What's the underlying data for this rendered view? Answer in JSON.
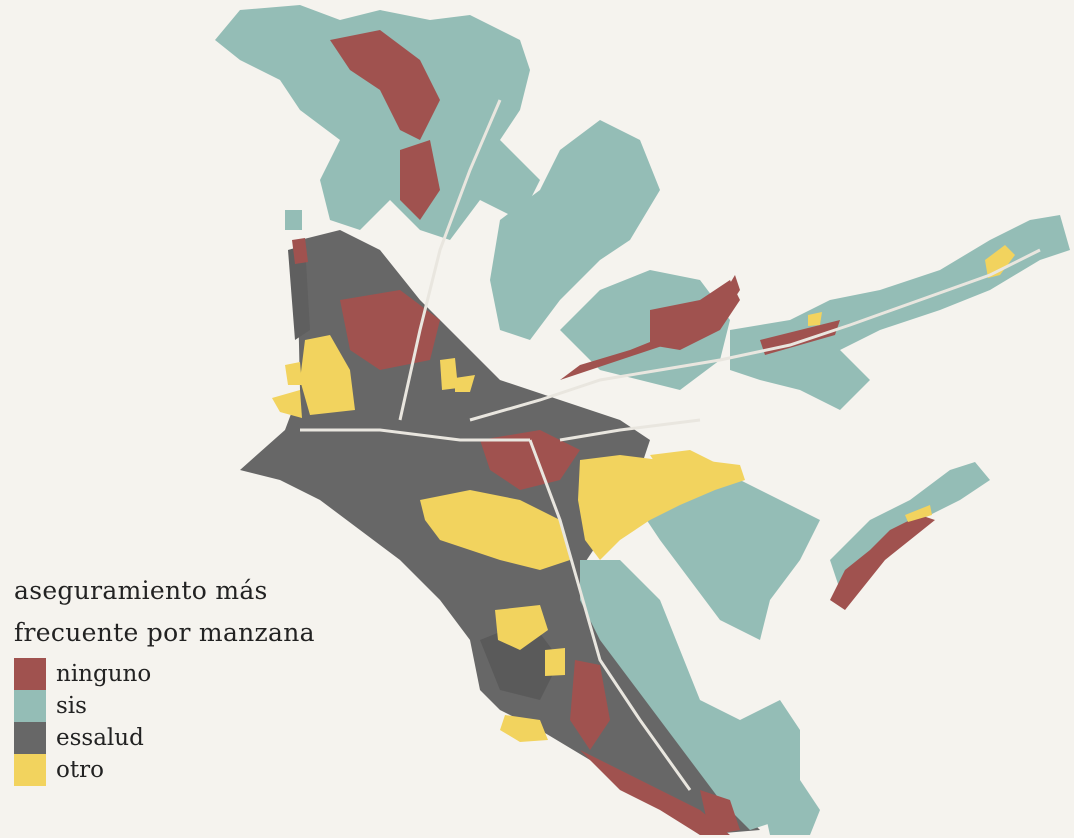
{
  "legend": {
    "title_line1": "aseguramiento más",
    "title_line2": "frecuente por manzana",
    "items": [
      {
        "label": "ninguno",
        "color": "#a0524f"
      },
      {
        "label": "sis",
        "color": "#94bdb6"
      },
      {
        "label": "essalud",
        "color": "#676767"
      },
      {
        "label": "otro",
        "color": "#f2d35e"
      }
    ]
  },
  "colors": {
    "background": "#f5f3ee",
    "ninguno": "#a0524f",
    "sis": "#94bdb6",
    "essalud": "#676767",
    "otro": "#f2d35e",
    "road": "#e9e6df"
  }
}
